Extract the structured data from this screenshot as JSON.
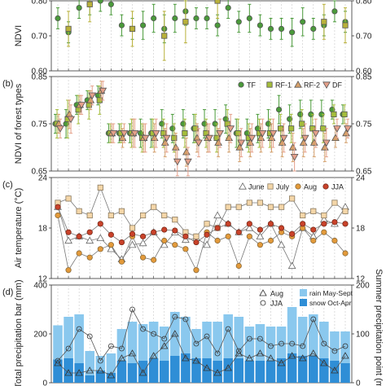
{
  "chart_data": [
    {
      "type": "scatter",
      "panel_label": "",
      "ylabel": "NDVI",
      "ylim": [
        0.6,
        0.8
      ],
      "yticks": [
        "0.60",
        "0.70",
        "0.80"
      ],
      "yticks_right": [
        "0.60",
        "0.70",
        "0.80"
      ],
      "x_count": 28,
      "series": [
        {
          "name": "TF",
          "marker": "circle",
          "color": "#4a9a3a",
          "values": [
            0.75,
            0.71,
            0.78,
            0.79,
            0.8,
            0.79,
            0.73,
            0.72,
            0.73,
            0.75,
            0.72,
            0.75,
            0.77,
            0.75,
            0.75,
            0.73,
            0.78,
            0.74,
            0.75,
            0.73,
            0.72,
            0.72,
            0.71,
            0.74,
            0.72,
            0.73,
            0.77,
            0.74
          ],
          "err": [
            0.03,
            0.03,
            0.03,
            0.03,
            0.03,
            0.03,
            0.03,
            0.03,
            0.04,
            0.04,
            0.04,
            0.04,
            0.04,
            0.03,
            0.03,
            0.03,
            0.03,
            0.03,
            0.04,
            0.03,
            0.03,
            0.03,
            0.04,
            0.04,
            0.03,
            0.03,
            0.03,
            0.03
          ]
        },
        {
          "name": "RF-1",
          "marker": "square",
          "color": "#b9b13a",
          "values": [
            null,
            0.72,
            null,
            0.79,
            null,
            null,
            null,
            0.72,
            null,
            null,
            0.7,
            null,
            0.74,
            null,
            null,
            0.8,
            null,
            null,
            null,
            null,
            null,
            null,
            null,
            null,
            null,
            0.74,
            null,
            0.73
          ],
          "err": [
            null,
            0.05,
            null,
            0.05,
            null,
            null,
            null,
            0.05,
            null,
            null,
            0.07,
            null,
            0.06,
            null,
            null,
            0.05,
            null,
            null,
            null,
            null,
            null,
            null,
            null,
            null,
            null,
            0.05,
            null,
            0.05
          ]
        }
      ]
    },
    {
      "type": "scatter",
      "panel_label": "(b)",
      "ylabel": "NDVI of forest types",
      "ylim": [
        0.65,
        0.85
      ],
      "yticks": [
        "0.65",
        "0.75",
        "0.85"
      ],
      "yticks_right": [
        "0.65",
        "0.75",
        "0.85"
      ],
      "x_count": 28,
      "legend": {
        "position": "top-right",
        "entries": [
          "TF",
          "RF-1",
          "RF-2",
          "DF"
        ]
      },
      "series": [
        {
          "name": "TF",
          "marker": "circle",
          "color": "#4a9a3a",
          "values": [
            0.75,
            0.75,
            0.79,
            0.8,
            0.81,
            0.73,
            0.73,
            0.73,
            0.73,
            0.73,
            0.75,
            0.74,
            0.75,
            0.74,
            0.75,
            0.75,
            0.76,
            0.73,
            0.73,
            0.74,
            0.75,
            0.78,
            0.76,
            0.77,
            0.77,
            0.77,
            0.78,
            0.77
          ],
          "err": [
            0.02,
            0.03,
            0.02,
            0.02,
            0.02,
            0.02,
            0.02,
            0.02,
            0.03,
            0.03,
            0.03,
            0.03,
            0.03,
            0.03,
            0.03,
            0.03,
            0.03,
            0.03,
            0.03,
            0.03,
            0.03,
            0.03,
            0.03,
            0.03,
            0.03,
            0.03,
            0.02,
            0.02
          ]
        },
        {
          "name": "RF-1",
          "marker": "square",
          "color": "#a4bd3a",
          "values": [
            0.75,
            0.76,
            0.78,
            0.79,
            0.8,
            0.73,
            0.73,
            0.73,
            0.72,
            0.73,
            0.73,
            0.72,
            0.73,
            0.74,
            0.73,
            0.72,
            0.75,
            0.73,
            0.72,
            0.73,
            0.73,
            0.74,
            0.74,
            0.75,
            0.74,
            0.74,
            0.77,
            0.77
          ],
          "err": [
            0.03,
            0.04,
            0.03,
            0.03,
            0.03,
            0.02,
            0.02,
            0.03,
            0.03,
            0.03,
            0.03,
            0.03,
            0.03,
            0.03,
            0.03,
            0.03,
            0.03,
            0.03,
            0.03,
            0.03,
            0.03,
            0.03,
            0.03,
            0.03,
            0.03,
            0.03,
            0.02,
            0.02
          ]
        },
        {
          "name": "RF-2",
          "marker": "triangle-up",
          "color": "#d6a06a",
          "values": [
            0.75,
            0.77,
            0.79,
            0.8,
            0.82,
            0.73,
            0.72,
            0.73,
            0.72,
            0.72,
            0.71,
            0.7,
            0.69,
            0.72,
            0.72,
            0.71,
            0.72,
            0.7,
            0.71,
            0.72,
            0.72,
            0.71,
            0.7,
            0.71,
            0.71,
            0.7,
            0.72,
            0.73
          ],
          "err": [
            0.02,
            0.03,
            0.02,
            0.02,
            0.02,
            0.02,
            0.02,
            0.03,
            0.03,
            0.03,
            0.03,
            0.03,
            0.03,
            0.03,
            0.03,
            0.03,
            0.03,
            0.03,
            0.03,
            0.03,
            0.03,
            0.03,
            0.03,
            0.03,
            0.03,
            0.03,
            0.02,
            0.02
          ]
        },
        {
          "name": "DF",
          "marker": "triangle-down",
          "color": "#e5a08a",
          "values": [
            0.74,
            0.76,
            0.79,
            0.81,
            0.82,
            0.73,
            0.73,
            0.73,
            0.72,
            0.73,
            0.72,
            0.67,
            0.67,
            0.71,
            0.72,
            0.73,
            0.74,
            0.71,
            0.72,
            0.73,
            0.73,
            0.72,
            0.68,
            0.72,
            0.73,
            0.71,
            0.74,
            0.74
          ],
          "err": [
            0.02,
            0.03,
            0.02,
            0.02,
            0.02,
            0.02,
            0.02,
            0.03,
            0.03,
            0.03,
            0.03,
            0.03,
            0.03,
            0.03,
            0.03,
            0.03,
            0.03,
            0.03,
            0.03,
            0.03,
            0.03,
            0.03,
            0.03,
            0.03,
            0.03,
            0.03,
            0.02,
            0.02
          ]
        }
      ]
    },
    {
      "type": "line",
      "panel_label": "(c)",
      "ylabel": "Air temperature (°C)",
      "ylim": [
        12,
        24
      ],
      "yticks": [
        "12",
        "18",
        "24"
      ],
      "yticks_right": [
        "12",
        "18",
        "24"
      ],
      "x_count": 28,
      "legend": {
        "position": "top-right",
        "entries": [
          "June",
          "July",
          "Aug",
          "JJA"
        ]
      },
      "series": [
        {
          "name": "June",
          "marker": "triangle-up",
          "color": "#ffffff",
          "stroke": "#666666",
          "values": [
            20.5,
            16.5,
            17.0,
            16.5,
            16.8,
            15.5,
            14.3,
            16.0,
            16.2,
            17.5,
            16.0,
            17.5,
            16.6,
            16.8,
            16.0,
            19.5,
            18.5,
            17.5,
            18.0,
            17.0,
            18.5,
            16.0,
            13.5,
            18.0,
            17.0,
            19.0,
            18.5,
            20.5
          ]
        },
        {
          "name": "July",
          "marker": "square",
          "color": "#f4d6a8",
          "stroke": "#8a7a60",
          "values": [
            21.0,
            21.5,
            20.0,
            19.5,
            22.8,
            19.5,
            20.0,
            18.0,
            19.5,
            20.5,
            19.5,
            19.0,
            17.5,
            17.0,
            18.5,
            18.0,
            20.5,
            20.5,
            21.0,
            21.0,
            20.5,
            20.5,
            21.5,
            19.5,
            20.0,
            19.5,
            21.0,
            20.0
          ]
        },
        {
          "name": "Aug",
          "marker": "circle",
          "color": "#e39a3a",
          "stroke": "#8a6a3a",
          "values": [
            19.5,
            13.0,
            15.0,
            14.5,
            15.5,
            16.0,
            14.0,
            17.0,
            14.5,
            14.2,
            16.5,
            16.0,
            15.5,
            13.0,
            17.5,
            16.5,
            17.0,
            13.5,
            17.0,
            16.0,
            16.5,
            17.5,
            17.0,
            18.0,
            16.5,
            17.5,
            16.5,
            15.0
          ]
        },
        {
          "name": "JJA",
          "marker": "circle",
          "color": "#c9422a",
          "stroke": "#7a2a1a",
          "values": [
            20.5,
            17.5,
            17.0,
            17.5,
            18.5,
            17.2,
            16.3,
            17.3,
            17.0,
            17.5,
            17.8,
            17.7,
            17.0,
            16.3,
            17.2,
            18.0,
            18.5,
            17.5,
            18.5,
            17.8,
            18.5,
            18.0,
            17.3,
            18.5,
            17.8,
            18.5,
            18.7,
            18.5
          ]
        }
      ]
    },
    {
      "type": "bar",
      "panel_label": "(d)",
      "ylabel": "Total precipitation bar (mm)",
      "ylabel_right": "Summer precipitation point (mm)",
      "ylim": [
        0,
        400
      ],
      "ylim_right": [
        0,
        200
      ],
      "yticks": [
        "0",
        "200",
        "400"
      ],
      "yticks_right": [
        "0",
        "100",
        "200"
      ],
      "x_count": 28,
      "legend": {
        "position": "top-right",
        "entries": [
          "Aug",
          "JJA",
          "rain May-Sept",
          "snow Oct-Apr"
        ]
      },
      "series": [
        {
          "name": "rain May-Sept",
          "color": "#8ac8ee",
          "values": [
            140,
            170,
            200,
            100,
            60,
            80,
            130,
            170,
            150,
            150,
            140,
            180,
            150,
            120,
            150,
            160,
            180,
            170,
            140,
            150,
            140,
            130,
            190,
            160,
            170,
            150,
            120,
            130
          ]
        },
        {
          "name": "snow Oct-Apr",
          "color": "#2f8ed6",
          "values": [
            95,
            100,
            80,
            30,
            50,
            40,
            90,
            80,
            90,
            100,
            90,
            110,
            120,
            100,
            100,
            90,
            100,
            100,
            90,
            90,
            90,
            100,
            120,
            110,
            110,
            100,
            90,
            80
          ]
        },
        {
          "name": "Aug",
          "marker": "triangle-up",
          "axis": "right",
          "values": [
            40,
            20,
            20,
            25,
            25,
            15,
            50,
            60,
            20,
            55,
            75,
            100,
            50,
            45,
            30,
            20,
            30,
            60,
            50,
            60,
            50,
            40,
            55,
            50,
            60,
            40,
            25,
            55
          ]
        },
        {
          "name": "JJA",
          "marker": "circle",
          "axis": "right",
          "values": [
            45,
            70,
            110,
            95,
            45,
            75,
            70,
            150,
            110,
            100,
            90,
            135,
            130,
            80,
            95,
            60,
            110,
            65,
            90,
            90,
            75,
            80,
            80,
            75,
            130,
            80,
            65,
            75
          ]
        }
      ]
    }
  ]
}
